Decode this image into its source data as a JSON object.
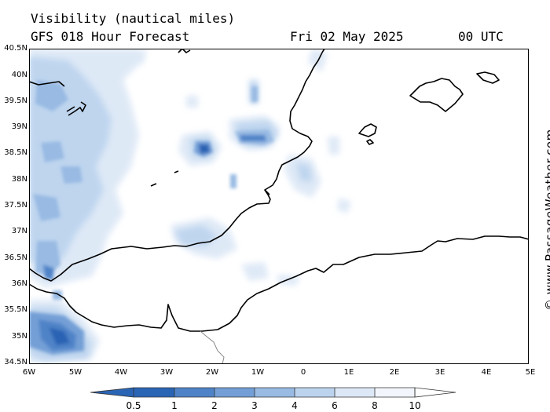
{
  "header": {
    "variable": "Visibility (nautical miles)",
    "model": "GFS 018 Hour Forecast",
    "date": "Fri 02 May 2025",
    "time": "00 UTC"
  },
  "axes": {
    "lat_labels": [
      "40.5N",
      "40N",
      "39.5N",
      "39N",
      "38.5N",
      "38N",
      "37.5N",
      "37N",
      "36.5N",
      "36N",
      "35.5N",
      "35N",
      "34.5N"
    ],
    "lon_labels": [
      "6W",
      "5W",
      "4W",
      "3W",
      "2W",
      "1W",
      "0",
      "1E",
      "2E",
      "3E",
      "4E",
      "5E"
    ],
    "lat_range": [
      34.5,
      40.5
    ],
    "lon_range": [
      -6,
      5
    ]
  },
  "credit": "© www.PassageWeather.com",
  "legend": {
    "labels": [
      "0.5",
      "1",
      "2",
      "3",
      "4",
      "6",
      "8",
      "10"
    ],
    "colors": [
      "#2a64b4",
      "#4f83c7",
      "#739fd6",
      "#98bae3",
      "#bcd3ee",
      "#dde8f6",
      "#f2f6fc"
    ]
  },
  "colors": {
    "land_line": "#000000",
    "border_line": "#888888",
    "background": "#ffffff"
  }
}
